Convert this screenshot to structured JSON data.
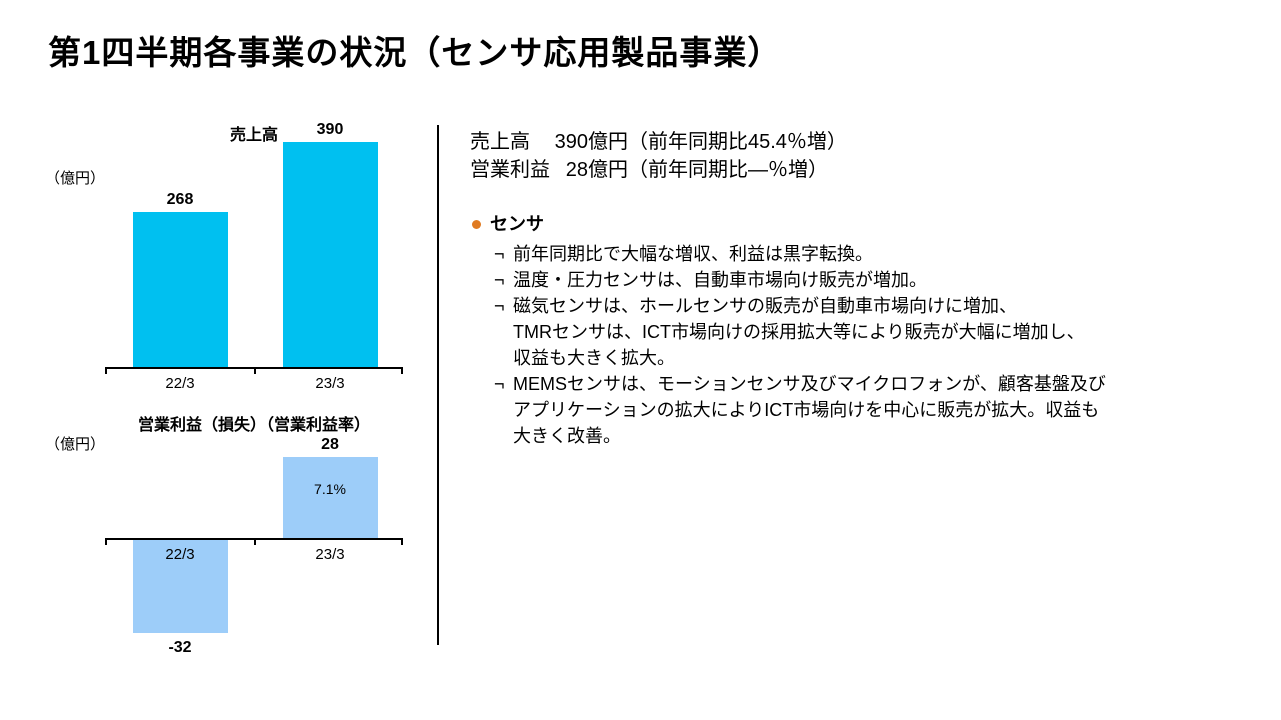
{
  "title": "第1四半期各事業の状況（センサ応用製品事業）",
  "summary": {
    "rows": [
      {
        "label": "売上高",
        "value": "390",
        "unit": "億円",
        "note": "（前年同期比45.4％増）"
      },
      {
        "label": "営業利益",
        "value": "28",
        "unit": "億円",
        "note": "（前年同期比―％増）"
      }
    ]
  },
  "bullets": [
    {
      "heading": "センサ",
      "marker": "¬",
      "items": [
        "前年同期比で大幅な増収、利益は黒字転換。",
        "温度・圧力センサは、自動車市場向け販売が増加。",
        "磁気センサは、ホールセンサの販売が自動車市場向けに増加、\nTMRセンサは、ICT市場向けの採用拡大等により販売が大幅に増加し、\n収益も大きく拡大。",
        "MEMSセンサは、モーションセンサ及びマイクロフォンが、顧客基盤及び\nアプリケーションの拡大によりICT市場向けを中心に販売が拡大。収益も\n大きく改善。"
      ]
    }
  ],
  "chart_data": [
    {
      "type": "bar",
      "title": "売上高",
      "ylabel": "（億円）",
      "categories": [
        "22/3",
        "23/3"
      ],
      "values": [
        268,
        390
      ],
      "value_labels": [
        "268",
        "390"
      ],
      "inner_labels": [
        "",
        ""
      ],
      "bar_color": "#00C0F0",
      "ylim": [
        0,
        420
      ],
      "grid": false,
      "legend": "none"
    },
    {
      "type": "bar",
      "title": "営業利益（損失）（営業利益率）",
      "ylabel": "（億円）",
      "categories": [
        "22/3",
        "23/3"
      ],
      "values": [
        -32,
        28
      ],
      "value_labels": [
        "-32",
        "28"
      ],
      "inner_labels": [
        "",
        "7.1%"
      ],
      "bar_color": "#9DCDF9",
      "ylim": [
        -40,
        40
      ],
      "grid": false,
      "legend": "none"
    }
  ],
  "colors": {
    "sales_bar": "#00C0F0",
    "profit_bar": "#9DCDF9",
    "bullet_dot": "#E07B22",
    "text": "#000000",
    "axis": "#000000"
  }
}
